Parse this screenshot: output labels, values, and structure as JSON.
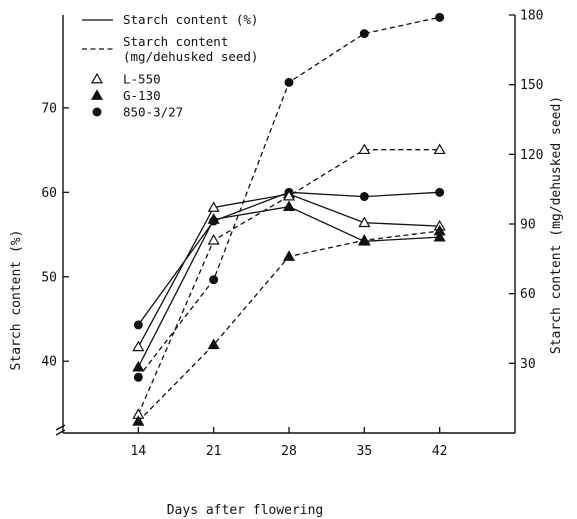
{
  "chart_data": {
    "type": "line",
    "xlabel": "Days after flowering",
    "ylabel_left": "Starch content (%)",
    "ylabel_right": "Starch content (mg/dehusked seed)",
    "x": [
      14,
      21,
      28,
      35,
      42
    ],
    "x_ticks": [
      "14",
      "21",
      "28",
      "35",
      "42"
    ],
    "xlim": [
      7,
      49
    ],
    "ylim_left": [
      31.5,
      81
    ],
    "yticks_left": [
      "40",
      "50",
      "60",
      "70"
    ],
    "ylim_right": [
      0,
      180
    ],
    "yticks_right": [
      "30",
      "60",
      "90",
      "120",
      "150",
      "180"
    ],
    "legend": {
      "lines": [
        {
          "style": "solid",
          "label": "Starch content (%)"
        },
        {
          "style": "dashed",
          "label": "Starch content",
          "label2": "(mg/dehusked seed)"
        }
      ],
      "markers": [
        {
          "marker": "open-triangle",
          "label": "L-550"
        },
        {
          "marker": "filled-triangle",
          "label": "G-130"
        },
        {
          "marker": "filled-circle",
          "label": "850-3/27"
        }
      ]
    },
    "series": [
      {
        "name": "L-550",
        "measure": "Starch content (%)",
        "axis": "left",
        "marker": "open-triangle",
        "style": "solid",
        "values": [
          41.7,
          58.2,
          59.8,
          56.4,
          56.0
        ]
      },
      {
        "name": "G-130",
        "measure": "Starch content (%)",
        "axis": "left",
        "marker": "filled-triangle",
        "style": "solid",
        "values": [
          39.3,
          56.8,
          58.3,
          54.2,
          54.7
        ]
      },
      {
        "name": "850-3/27",
        "measure": "Starch content (%)",
        "axis": "left",
        "marker": "filled-circle",
        "style": "solid",
        "values": [
          44.3,
          56.6,
          60.0,
          59.5,
          60.0
        ]
      },
      {
        "name": "L-550",
        "measure": "Starch content (mg/dehusked seed)",
        "axis": "right",
        "marker": "open-triangle",
        "style": "dashed",
        "values": [
          8,
          83,
          102,
          122,
          122
        ]
      },
      {
        "name": "G-130",
        "measure": "Starch content (mg/dehusked seed)",
        "axis": "right",
        "marker": "filled-triangle",
        "style": "dashed",
        "values": [
          5,
          38,
          76,
          83,
          87
        ]
      },
      {
        "name": "850-3/27",
        "measure": "Starch content (mg/dehusked seed)",
        "axis": "right",
        "marker": "filled-circle",
        "style": "dashed",
        "values": [
          24,
          66,
          151,
          172,
          179
        ]
      }
    ]
  }
}
